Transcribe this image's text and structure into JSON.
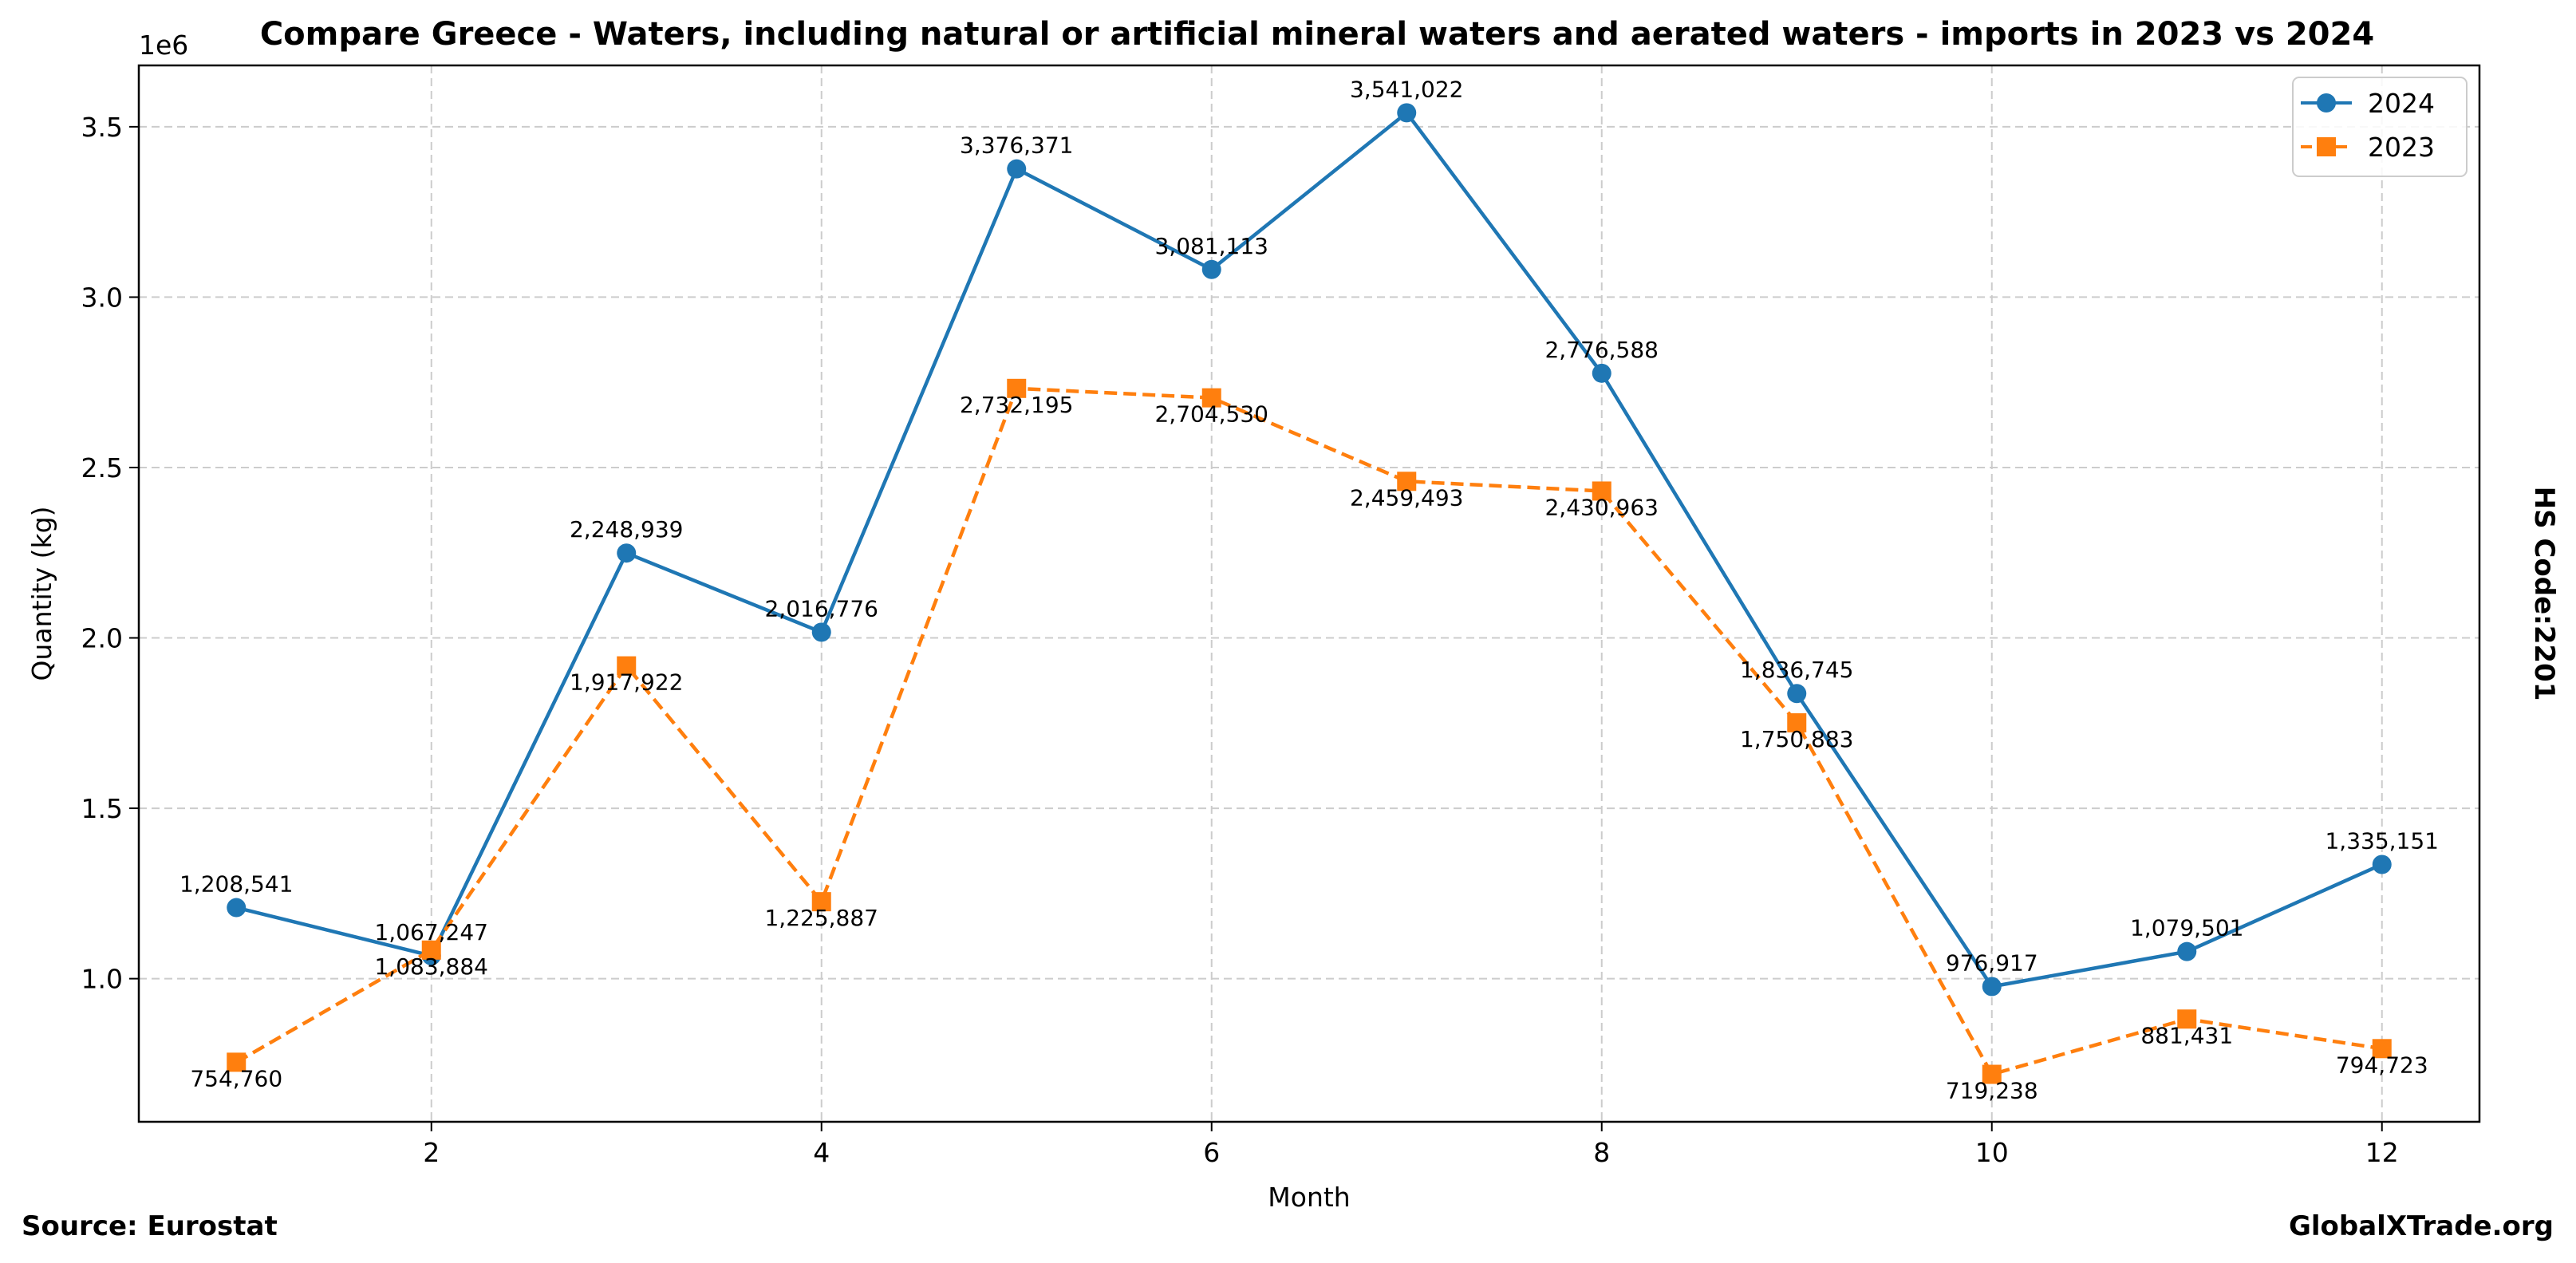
{
  "chart_data": {
    "type": "line",
    "title": "Compare Greece - Waters, including natural or artificial mineral waters and aerated waters - imports in 2023 vs 2024",
    "xlabel": "Month",
    "ylabel": "Quantity (kg)",
    "y_offset_label": "1e6",
    "x": [
      1,
      2,
      3,
      4,
      5,
      6,
      7,
      8,
      9,
      10,
      11,
      12
    ],
    "xlim": [
      0.5,
      12.5
    ],
    "ylim": [
      580000,
      3680000
    ],
    "x_ticks": [
      2,
      4,
      6,
      8,
      10,
      12
    ],
    "x_tick_labels": [
      "2",
      "4",
      "6",
      "8",
      "10",
      "12"
    ],
    "y_ticks": [
      1000000,
      1500000,
      2000000,
      2500000,
      3000000,
      3500000
    ],
    "y_tick_labels": [
      "1.0",
      "1.5",
      "2.0",
      "2.5",
      "3.0",
      "3.5"
    ],
    "grid": true,
    "legend_position": "top-right",
    "series": [
      {
        "name": "2024",
        "color": "#1f77b4",
        "line_style": "solid",
        "marker": "circle",
        "label_position": "above",
        "values": [
          1208541,
          1067247,
          2248939,
          2016776,
          3376371,
          3081113,
          3541022,
          2776588,
          1836745,
          976917,
          1079501,
          1335151
        ],
        "labels": [
          "1,208,541",
          "1,067,247",
          "2,248,939",
          "2,016,776",
          "3,376,371",
          "3,081,113",
          "3,541,022",
          "2,776,588",
          "1,836,745",
          "976,917",
          "1,079,501",
          "1,335,151"
        ]
      },
      {
        "name": "2023",
        "color": "#ff7f0e",
        "line_style": "dashed",
        "marker": "square",
        "label_position": "below",
        "values": [
          754760,
          1083884,
          1917922,
          1225887,
          2732195,
          2704530,
          2459493,
          2430963,
          1750883,
          719238,
          881431,
          794723
        ],
        "labels": [
          "754,760",
          "1,083,884",
          "1,917,922",
          "1,225,887",
          "2,732,195",
          "2,704,530",
          "2,459,493",
          "2,430,963",
          "1,750,883",
          "719,238",
          "881,431",
          "794,723"
        ]
      }
    ]
  },
  "annotations": {
    "hs_code": "HS Code:2201",
    "source": "Source: Eurostat",
    "brand": "GlobalXTrade.org"
  }
}
